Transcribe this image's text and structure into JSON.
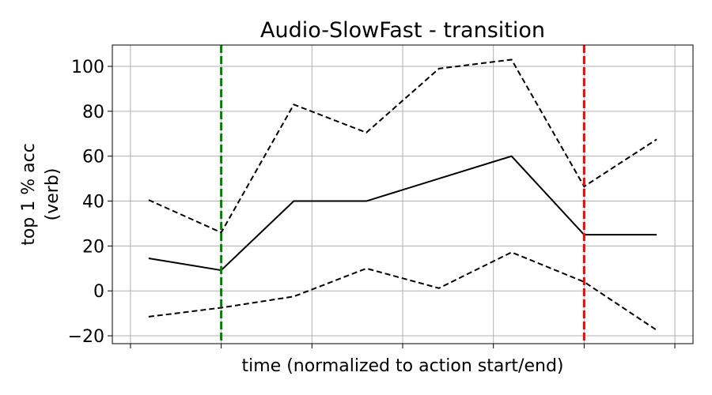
{
  "chart_data": {
    "type": "line",
    "title": "Audio-SlowFast - transition",
    "xlabel": "time (normalized to action start/end)",
    "ylabel_lines": [
      "top 1 % acc",
      "(verb)"
    ],
    "x": [
      0.0,
      0.5,
      1.0,
      1.5,
      2.0,
      2.5,
      3.0,
      3.5
    ],
    "xlim": [
      -0.25,
      3.75
    ],
    "x_ticks": [
      -0.125,
      0.5,
      1.125,
      1.75,
      2.375,
      3.0,
      3.625
    ],
    "ylim": [
      -23.5,
      109.5
    ],
    "y_ticks": [
      -20,
      0,
      20,
      40,
      60,
      80,
      100
    ],
    "y_tick_labels": [
      "−20",
      "0",
      "20",
      "40",
      "60",
      "80",
      "100"
    ],
    "grid": true,
    "series": [
      {
        "values": [
          14.5,
          9.2,
          40,
          40,
          50,
          60,
          25,
          25
        ],
        "color": "#000000",
        "style": "solid"
      },
      {
        "values": [
          40.5,
          26,
          83,
          70.5,
          99,
          103,
          46.5,
          67.5
        ],
        "color": "#000000",
        "style": "dashed"
      },
      {
        "values": [
          -11.5,
          -7.5,
          -2.5,
          10,
          1.2,
          17.2,
          4,
          -17.5
        ],
        "color": "#000000",
        "style": "dashed"
      }
    ],
    "vlines": [
      {
        "x": 0.5,
        "color": "#008000",
        "style": "dashed"
      },
      {
        "x": 3.0,
        "color": "#ff0000",
        "style": "dashed"
      }
    ]
  }
}
